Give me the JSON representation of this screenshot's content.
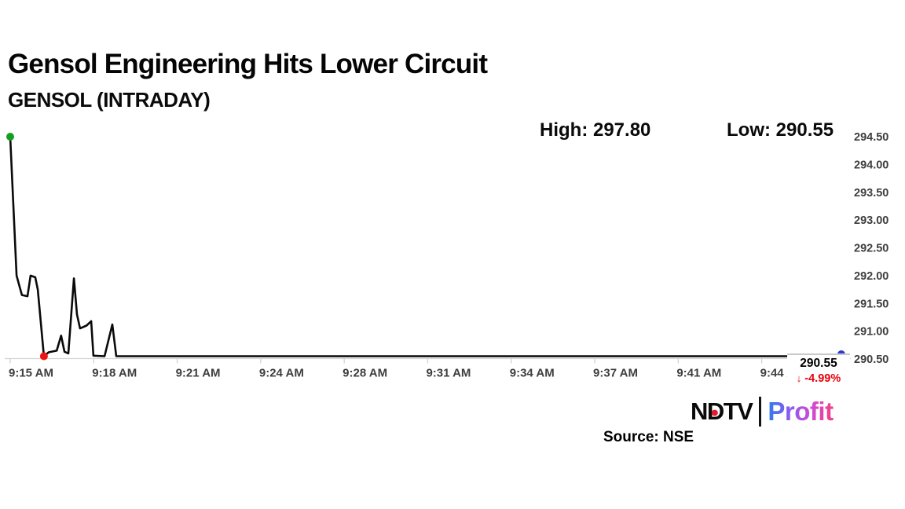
{
  "header": {
    "title": "Gensol Engineering Hits Lower Circuit",
    "subtitle": "GENSOL (INTRADAY)"
  },
  "stats": {
    "high": "High: 297.80",
    "low": "Low: 290.55"
  },
  "chart_data": {
    "type": "line",
    "title": "GENSOL intraday price line",
    "x_axis_note": "intraday time axis, one unit = one chart minute-slot starting 9:15 AM; ticks every 3 slots",
    "x_tick_labels": [
      "9:15 AM",
      "9:18 AM",
      "9:21 AM",
      "9:24 AM",
      "9:28 AM",
      "9:31 AM",
      "9:34 AM",
      "9:37 AM",
      "9:41 AM",
      "9:44 AM"
    ],
    "x_tick_units": [
      0,
      3,
      6,
      9,
      12,
      15,
      18,
      21,
      24,
      27
    ],
    "y_tick_labels": [
      "294.50",
      "294.00",
      "293.50",
      "293.00",
      "292.50",
      "292.00",
      "291.50",
      "291.00",
      "290.50"
    ],
    "ylim": [
      290.5,
      294.5
    ],
    "xlim": [
      0,
      30.2
    ],
    "grid": "off",
    "line_color": "#0a0a0a",
    "axis_color": "#d4d4d4",
    "tick_label_color": "#3e3e3e",
    "points": [
      [
        0.0,
        294.5
      ],
      [
        0.23,
        292.0
      ],
      [
        0.31,
        291.85
      ],
      [
        0.42,
        291.65
      ],
      [
        0.62,
        291.63
      ],
      [
        0.73,
        292.0
      ],
      [
        0.9,
        291.97
      ],
      [
        0.99,
        291.75
      ],
      [
        1.21,
        290.55
      ],
      [
        1.38,
        290.62
      ],
      [
        1.67,
        290.65
      ],
      [
        1.83,
        290.92
      ],
      [
        1.95,
        290.63
      ],
      [
        2.09,
        290.6
      ],
      [
        2.29,
        291.95
      ],
      [
        2.4,
        291.3
      ],
      [
        2.51,
        291.05
      ],
      [
        2.74,
        291.1
      ],
      [
        2.91,
        291.18
      ],
      [
        2.99,
        290.56
      ],
      [
        3.39,
        290.55
      ],
      [
        3.67,
        291.12
      ],
      [
        3.81,
        290.55
      ],
      [
        29.86,
        290.55
      ]
    ],
    "markers": [
      {
        "name": "open",
        "point_index": 0,
        "color": "#12a01e"
      },
      {
        "name": "low",
        "point_index": 8,
        "color": "#ee1414"
      },
      {
        "name": "last",
        "point_index": 23,
        "color": "#2b3ccc"
      }
    ],
    "last_price": {
      "value": "290.55",
      "arrow": "↓",
      "change": "-4.99%",
      "change_color": "#e8000d"
    }
  },
  "source": {
    "label": "Source: NSE"
  },
  "logo": {
    "ndtv_parts": [
      "N",
      "D",
      "TV"
    ],
    "red_dot_color": "#e8192c",
    "profit": "Profit",
    "profit_gradient": [
      "#2f7bea",
      "#8a5cf0",
      "#cf4bd4",
      "#f43f86"
    ]
  }
}
